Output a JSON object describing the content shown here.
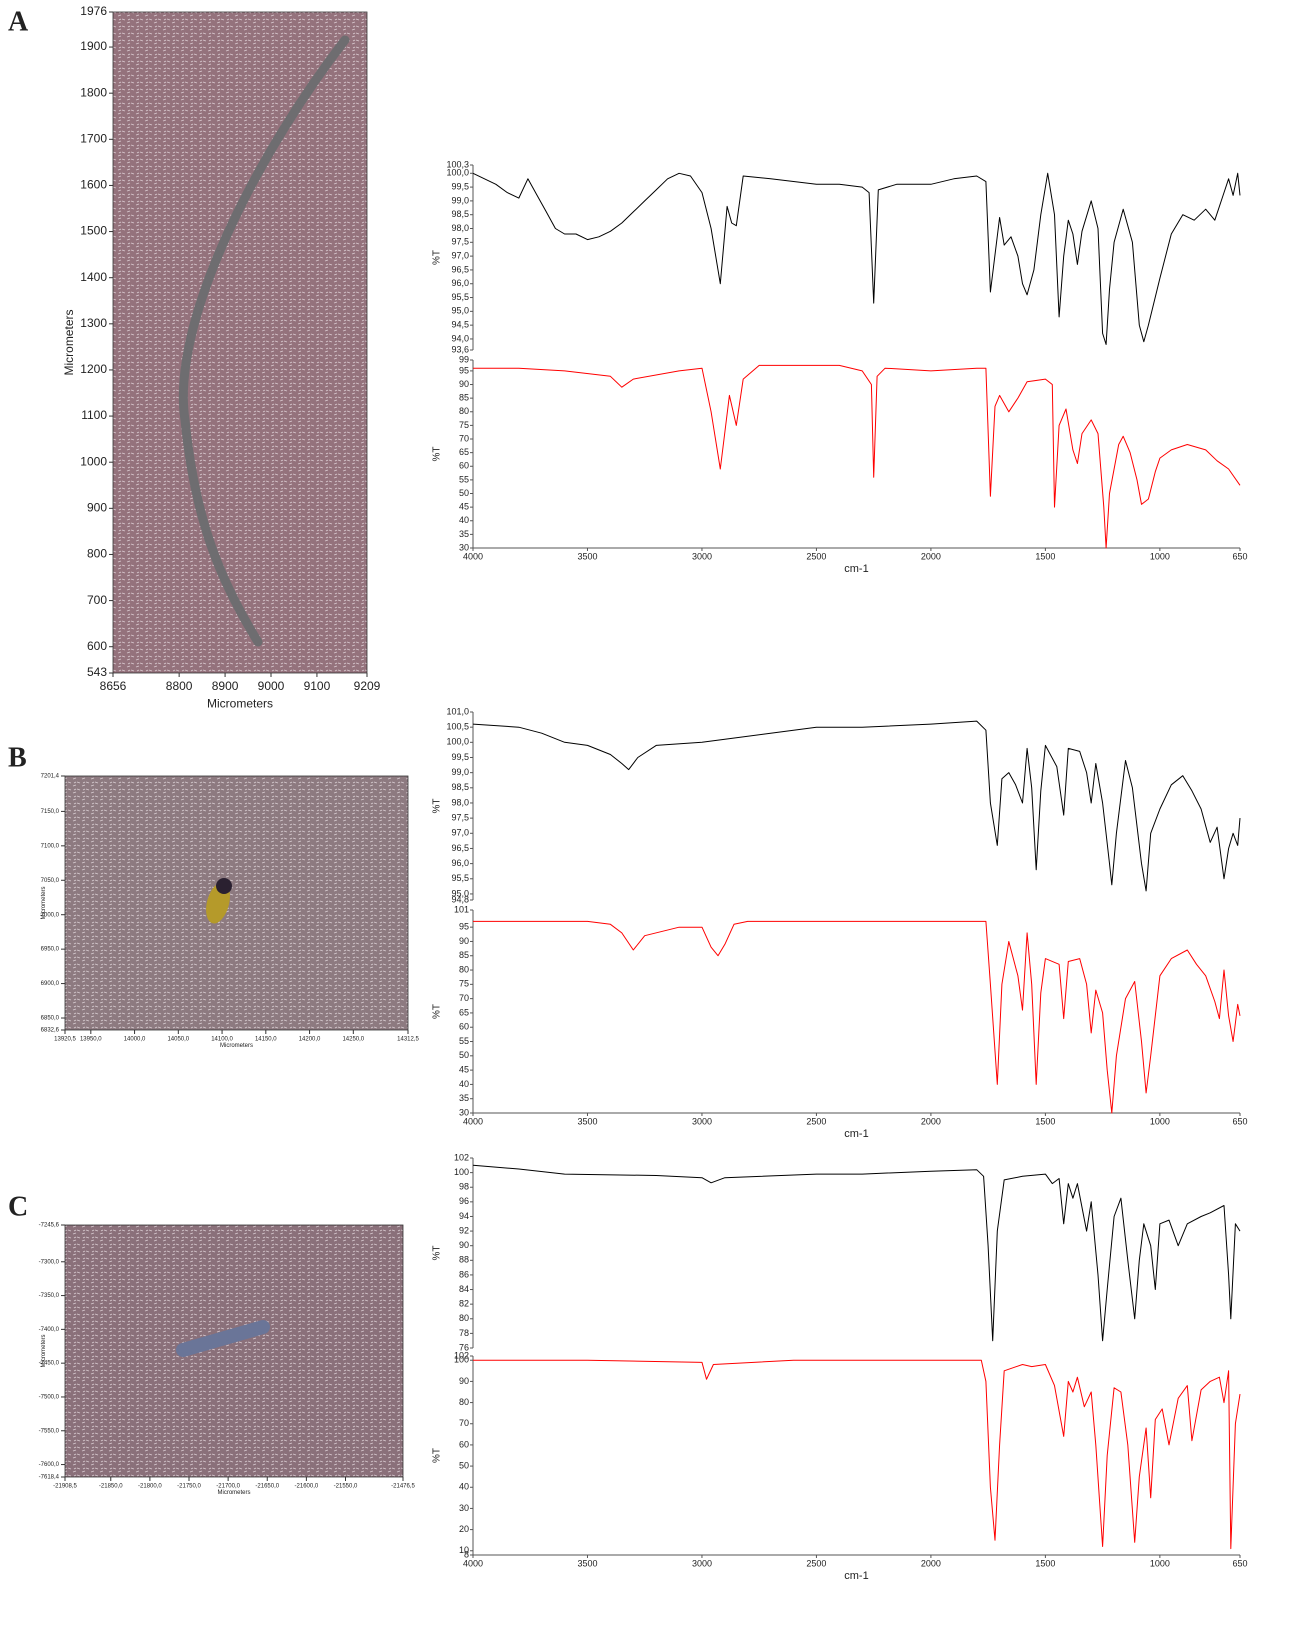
{
  "chart_data": [
    {
      "type": "image",
      "panel": "A",
      "xlabel": "Micrometers",
      "ylabel": "Micrometers",
      "xlim": [
        8656,
        9209
      ],
      "xticks": [
        8656,
        8800,
        8900,
        9000,
        9100,
        9209
      ],
      "ylim": [
        543,
        1976
      ],
      "yticks": [
        543,
        600,
        700,
        800,
        900,
        1000,
        1100,
        1200,
        1300,
        1400,
        1500,
        1600,
        1700,
        1800,
        1900,
        1976
      ]
    },
    {
      "type": "line",
      "ylabel": "%T",
      "xlim": [
        4000,
        650
      ],
      "ylim": [
        93.6,
        100.3
      ],
      "yticks": [
        {
          "value": 93.6,
          "label": "93,6"
        },
        {
          "value": 94.0,
          "label": "94,0"
        },
        {
          "value": 94.5,
          "label": "94,5"
        },
        {
          "value": 95.0,
          "label": "95,0"
        },
        {
          "value": 95.5,
          "label": "95,5"
        },
        {
          "value": 96.0,
          "label": "96,0"
        },
        {
          "value": 96.5,
          "label": "96,5"
        },
        {
          "value": 97.0,
          "label": "97,0"
        },
        {
          "value": 97.5,
          "label": "97,5"
        },
        {
          "value": 98.0,
          "label": "98,0"
        },
        {
          "value": 98.5,
          "label": "98,5"
        },
        {
          "value": 99.0,
          "label": "99,0"
        },
        {
          "value": 99.5,
          "label": "99,5"
        },
        {
          "value": 100.0,
          "label": "100,0"
        },
        {
          "value": 100.3,
          "label": "100,3"
        }
      ],
      "x": [
        4000,
        3900,
        3850,
        3800,
        3760,
        3720,
        3680,
        3640,
        3600,
        3550,
        3500,
        3450,
        3400,
        3350,
        3300,
        3250,
        3200,
        3150,
        3100,
        3050,
        3000,
        2960,
        2920,
        2890,
        2870,
        2850,
        2820,
        2700,
        2500,
        2400,
        2300,
        2270,
        2250,
        2230,
        2150,
        2000,
        1900,
        1800,
        1760,
        1740,
        1700,
        1680,
        1650,
        1620,
        1600,
        1580,
        1550,
        1520,
        1490,
        1460,
        1440,
        1420,
        1400,
        1380,
        1360,
        1340,
        1300,
        1270,
        1250,
        1235,
        1220,
        1200,
        1160,
        1120,
        1090,
        1070,
        1050,
        1000,
        950,
        900,
        850,
        800,
        760,
        720,
        700,
        680,
        660,
        650
      ],
      "series": [
        {
          "color": "#000000",
          "values": [
            100.0,
            99.6,
            99.3,
            99.1,
            99.8,
            99.2,
            98.6,
            98.0,
            97.8,
            97.8,
            97.6,
            97.7,
            97.9,
            98.2,
            98.6,
            99.0,
            99.4,
            99.8,
            100.0,
            99.9,
            99.3,
            98.0,
            96.0,
            98.8,
            98.2,
            98.1,
            99.9,
            99.8,
            99.6,
            99.6,
            99.5,
            99.3,
            95.3,
            99.4,
            99.6,
            99.6,
            99.8,
            99.9,
            99.7,
            95.7,
            98.4,
            97.4,
            97.7,
            97.0,
            96.0,
            95.6,
            96.5,
            98.5,
            100.0,
            98.5,
            94.8,
            97.0,
            98.3,
            97.8,
            96.7,
            97.9,
            99.0,
            98.0,
            94.2,
            93.8,
            95.8,
            97.5,
            98.7,
            97.5,
            94.5,
            93.9,
            94.5,
            96.2,
            97.8,
            98.5,
            98.3,
            98.7,
            98.3,
            99.3,
            99.8,
            99.2,
            100.0,
            99.2
          ]
        }
      ]
    },
    {
      "type": "line",
      "ylabel": "%T",
      "xlabel": "cm-1",
      "xlim": [
        4000,
        650
      ],
      "xticks": [
        4000,
        3500,
        3000,
        2500,
        2000,
        1500,
        1000,
        650
      ],
      "ylim": [
        30,
        99
      ],
      "yticks": [
        30,
        35,
        40,
        45,
        50,
        55,
        60,
        65,
        70,
        75,
        80,
        85,
        90,
        95,
        99
      ],
      "x": [
        4000,
        3800,
        3600,
        3400,
        3350,
        3300,
        3100,
        3000,
        2960,
        2920,
        2880,
        2850,
        2820,
        2750,
        2500,
        2400,
        2300,
        2260,
        2250,
        2235,
        2200,
        2000,
        1800,
        1760,
        1740,
        1720,
        1700,
        1660,
        1620,
        1580,
        1500,
        1470,
        1460,
        1440,
        1410,
        1380,
        1360,
        1340,
        1300,
        1270,
        1245,
        1235,
        1220,
        1180,
        1160,
        1130,
        1100,
        1080,
        1050,
        1020,
        1000,
        950,
        880,
        800,
        750,
        700,
        650
      ],
      "series": [
        {
          "color": "#ff0000",
          "values": [
            96,
            96,
            95,
            93,
            89,
            92,
            95,
            96,
            80,
            59,
            86,
            75,
            92,
            97,
            97,
            97,
            95,
            90,
            56,
            93,
            96,
            95,
            96,
            96,
            49,
            82,
            86,
            80,
            85,
            91,
            92,
            90,
            45,
            75,
            81,
            66,
            61,
            72,
            77,
            72,
            45,
            30,
            50,
            68,
            71,
            65,
            55,
            46,
            48,
            58,
            63,
            66,
            68,
            66,
            62,
            59,
            53
          ]
        }
      ]
    },
    {
      "type": "image",
      "panel": "B",
      "xlabel": "Micrometers",
      "ylabel": "Micrometers",
      "xlim": [
        13920.5,
        14312.5
      ],
      "xticks": [
        {
          "value": 13920.5,
          "label": "13920,5"
        },
        {
          "value": 13950,
          "label": "13950,0"
        },
        {
          "value": 14000,
          "label": "14000,0"
        },
        {
          "value": 14050,
          "label": "14050,0"
        },
        {
          "value": 14100,
          "label": "14100,0"
        },
        {
          "value": 14150,
          "label": "14150,0"
        },
        {
          "value": 14200,
          "label": "14200,0"
        },
        {
          "value": 14250,
          "label": "14250,0"
        },
        {
          "value": 14312.5,
          "label": "14312,5"
        }
      ],
      "ylim": [
        6832.6,
        7201.4
      ],
      "yticks": [
        {
          "value": 6832.6,
          "label": "6832,6"
        },
        {
          "value": 6850,
          "label": "6850,0"
        },
        {
          "value": 6900,
          "label": "6900,0"
        },
        {
          "value": 6950,
          "label": "6950,0"
        },
        {
          "value": 7000,
          "label": "7000,0"
        },
        {
          "value": 7050,
          "label": "7050,0"
        },
        {
          "value": 7100,
          "label": "7100,0"
        },
        {
          "value": 7150,
          "label": "7150,0"
        },
        {
          "value": 7201.4,
          "label": "7201,4"
        }
      ]
    },
    {
      "type": "line",
      "ylabel": "%T",
      "xlim": [
        4000,
        650
      ],
      "ylim": [
        94.8,
        101.0
      ],
      "yticks": [
        {
          "value": 94.8,
          "label": "94,8"
        },
        {
          "value": 95.0,
          "label": "95,0"
        },
        {
          "value": 95.5,
          "label": "95,5"
        },
        {
          "value": 96.0,
          "label": "96,0"
        },
        {
          "value": 96.5,
          "label": "96,5"
        },
        {
          "value": 97.0,
          "label": "97,0"
        },
        {
          "value": 97.5,
          "label": "97,5"
        },
        {
          "value": 98.0,
          "label": "98,0"
        },
        {
          "value": 98.5,
          "label": "98,5"
        },
        {
          "value": 99.0,
          "label": "99,0"
        },
        {
          "value": 99.5,
          "label": "99,5"
        },
        {
          "value": 100.0,
          "label": "100,0"
        },
        {
          "value": 100.5,
          "label": "100,5"
        },
        {
          "value": 101.0,
          "label": "101,0"
        }
      ],
      "x": [
        4000,
        3800,
        3700,
        3600,
        3500,
        3400,
        3350,
        3320,
        3280,
        3200,
        3000,
        2900,
        2700,
        2500,
        2300,
        2000,
        1800,
        1760,
        1740,
        1710,
        1690,
        1660,
        1630,
        1600,
        1580,
        1560,
        1540,
        1520,
        1500,
        1450,
        1420,
        1400,
        1350,
        1320,
        1300,
        1280,
        1250,
        1220,
        1210,
        1190,
        1150,
        1120,
        1080,
        1060,
        1040,
        1000,
        950,
        900,
        860,
        820,
        780,
        750,
        720,
        700,
        680,
        660,
        650
      ],
      "series": [
        {
          "color": "#000000",
          "values": [
            100.6,
            100.5,
            100.3,
            100.0,
            99.9,
            99.6,
            99.3,
            99.1,
            99.5,
            99.9,
            100.0,
            100.1,
            100.3,
            100.5,
            100.5,
            100.6,
            100.7,
            100.4,
            98.0,
            96.6,
            98.8,
            99.0,
            98.6,
            98.0,
            99.8,
            98.5,
            95.8,
            98.4,
            99.9,
            99.2,
            97.6,
            99.8,
            99.7,
            99.0,
            98.0,
            99.3,
            98.0,
            96.0,
            95.3,
            97.0,
            99.4,
            98.5,
            96.0,
            95.1,
            97.0,
            97.8,
            98.6,
            98.9,
            98.4,
            97.8,
            96.7,
            97.2,
            95.5,
            96.5,
            97.0,
            96.6,
            97.5
          ]
        }
      ]
    },
    {
      "type": "line",
      "ylabel": "%T",
      "xlabel": "cm-1",
      "xlim": [
        4000,
        650
      ],
      "xticks": [
        4000,
        3500,
        3000,
        2500,
        2000,
        1500,
        1000,
        650
      ],
      "ylim": [
        30,
        101
      ],
      "yticks": [
        30,
        35,
        40,
        45,
        50,
        55,
        60,
        65,
        70,
        75,
        80,
        85,
        90,
        95,
        101
      ],
      "x": [
        4000,
        3500,
        3400,
        3350,
        3300,
        3250,
        3100,
        3000,
        2960,
        2930,
        2900,
        2860,
        2800,
        2400,
        2000,
        1760,
        1740,
        1710,
        1690,
        1660,
        1620,
        1600,
        1580,
        1560,
        1540,
        1520,
        1500,
        1440,
        1420,
        1400,
        1350,
        1320,
        1300,
        1280,
        1250,
        1230,
        1210,
        1190,
        1150,
        1110,
        1080,
        1060,
        1040,
        1000,
        950,
        880,
        840,
        800,
        760,
        740,
        720,
        700,
        680,
        660,
        650
      ],
      "series": [
        {
          "color": "#ff0000",
          "values": [
            97,
            97,
            96,
            93,
            87,
            92,
            95,
            95,
            88,
            85,
            89,
            96,
            97,
            97,
            97,
            97,
            75,
            40,
            75,
            90,
            78,
            66,
            93,
            75,
            40,
            72,
            84,
            82,
            63,
            83,
            84,
            75,
            58,
            73,
            65,
            45,
            30,
            50,
            70,
            76,
            55,
            37,
            50,
            78,
            84,
            87,
            82,
            78,
            69,
            63,
            80,
            64,
            55,
            68,
            64
          ]
        }
      ]
    },
    {
      "type": "image",
      "panel": "C",
      "xlabel": "Micrometers",
      "ylabel": "Micrometers",
      "xlim": [
        -21908.5,
        -21476.5
      ],
      "xticks": [
        {
          "value": -21908.5,
          "label": "-21908,5"
        },
        {
          "value": -21850,
          "label": "-21850,0"
        },
        {
          "value": -21800,
          "label": "-21800,0"
        },
        {
          "value": -21750,
          "label": "-21750,0"
        },
        {
          "value": -21700,
          "label": "-21700,0"
        },
        {
          "value": -21650,
          "label": "-21650,0"
        },
        {
          "value": -21600,
          "label": "-21600,0"
        },
        {
          "value": -21550,
          "label": "-21550,0"
        },
        {
          "value": -21476.5,
          "label": "-21476,5"
        }
      ],
      "ylim": [
        -7618.4,
        -7245.6
      ],
      "yticks": [
        {
          "value": -7618.4,
          "label": "-7618,4"
        },
        {
          "value": -7600,
          "label": "-7600,0"
        },
        {
          "value": -7550,
          "label": "-7550,0"
        },
        {
          "value": -7500,
          "label": "-7500,0"
        },
        {
          "value": -7450,
          "label": "-7450,0"
        },
        {
          "value": -7400,
          "label": "-7400,0"
        },
        {
          "value": -7350,
          "label": "-7350,0"
        },
        {
          "value": -7300,
          "label": "-7300,0"
        },
        {
          "value": -7245.6,
          "label": "-7245,6"
        }
      ]
    },
    {
      "type": "line",
      "ylabel": "%T",
      "xlim": [
        4000,
        650
      ],
      "ylim": [
        76,
        102
      ],
      "yticks": [
        76,
        78,
        80,
        82,
        84,
        86,
        88,
        90,
        92,
        94,
        96,
        98,
        100,
        102
      ],
      "x": [
        4000,
        3800,
        3600,
        3200,
        3000,
        2960,
        2900,
        2500,
        2300,
        2000,
        1800,
        1770,
        1750,
        1730,
        1710,
        1680,
        1600,
        1500,
        1470,
        1440,
        1420,
        1400,
        1380,
        1360,
        1320,
        1300,
        1270,
        1250,
        1230,
        1200,
        1170,
        1140,
        1110,
        1090,
        1070,
        1040,
        1020,
        1000,
        960,
        920,
        880,
        820,
        780,
        720,
        700,
        690,
        670,
        650
      ],
      "series": [
        {
          "color": "#000000",
          "values": [
            101,
            100.5,
            99.8,
            99.6,
            99.3,
            98.6,
            99.3,
            99.8,
            99.8,
            100.2,
            100.4,
            99.5,
            90,
            77,
            92,
            99,
            99.5,
            99.8,
            98.5,
            99.2,
            93,
            98.5,
            96.5,
            98.5,
            92,
            96,
            86,
            77,
            84,
            94,
            96.5,
            88,
            80,
            88,
            93,
            90,
            84,
            93,
            93.5,
            90,
            93,
            94,
            94.5,
            95.5,
            86,
            80,
            93,
            92
          ]
        }
      ]
    },
    {
      "type": "line",
      "ylabel": "%T",
      "xlabel": "cm-1",
      "xlim": [
        4000,
        650
      ],
      "xticks": [
        4000,
        3500,
        3000,
        2500,
        2000,
        1500,
        1000,
        650
      ],
      "ylim": [
        8,
        102
      ],
      "yticks": [
        8,
        10,
        20,
        30,
        40,
        50,
        60,
        70,
        80,
        90,
        100,
        102
      ],
      "x": [
        4000,
        3500,
        3000,
        2980,
        2950,
        2600,
        2300,
        2000,
        1780,
        1760,
        1740,
        1720,
        1700,
        1680,
        1600,
        1560,
        1500,
        1460,
        1420,
        1400,
        1380,
        1360,
        1330,
        1300,
        1280,
        1250,
        1230,
        1200,
        1170,
        1140,
        1110,
        1090,
        1060,
        1040,
        1020,
        990,
        960,
        920,
        880,
        860,
        820,
        780,
        740,
        720,
        700,
        690,
        670,
        650
      ],
      "series": [
        {
          "color": "#ff0000",
          "values": [
            100,
            100,
            99,
            91,
            98,
            100,
            100,
            100,
            100,
            90,
            40,
            15,
            60,
            95,
            98,
            97,
            98,
            88,
            64,
            90,
            85,
            92,
            78,
            85,
            60,
            12,
            55,
            87,
            85,
            60,
            14,
            45,
            68,
            35,
            72,
            77,
            60,
            82,
            88,
            62,
            86,
            90,
            92,
            80,
            95,
            11,
            70,
            84
          ]
        }
      ]
    }
  ]
}
